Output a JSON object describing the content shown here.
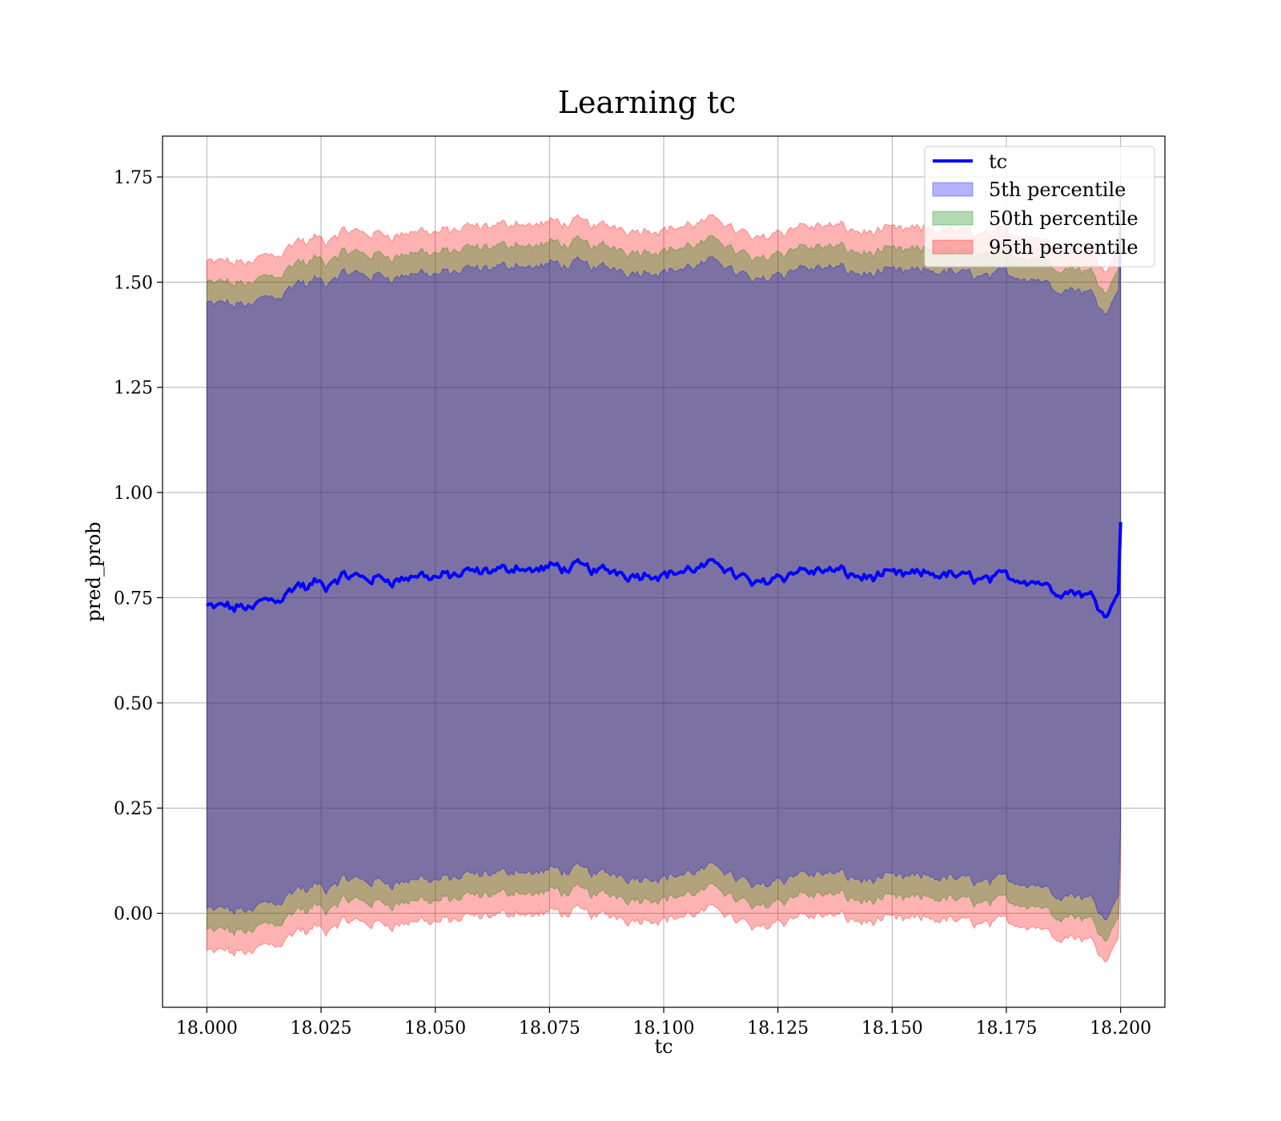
{
  "chart_data": {
    "type": "line",
    "title": "Learning tc",
    "xlabel": "tc",
    "ylabel": "pred_prob",
    "xlim": [
      17.9903,
      18.2097
    ],
    "ylim": [
      -0.2235,
      1.8471
    ],
    "x_ticks": [
      18.0,
      18.025,
      18.05,
      18.075,
      18.1,
      18.125,
      18.15,
      18.175,
      18.2
    ],
    "x_tick_labels": [
      "18.000",
      "18.025",
      "18.050",
      "18.075",
      "18.100",
      "18.125",
      "18.150",
      "18.175",
      "18.200"
    ],
    "y_ticks": [
      0.0,
      0.25,
      0.5,
      0.75,
      1.0,
      1.25,
      1.5,
      1.75
    ],
    "y_tick_labels": [
      "0.00",
      "0.25",
      "0.50",
      "0.75",
      "1.00",
      "1.25",
      "1.50",
      "1.75"
    ],
    "grid": true,
    "legend_position": "upper right",
    "x_start": 18.0,
    "x_end": 18.2,
    "point_count": 400,
    "mean_curve": {
      "x": [
        18.0,
        18.002,
        18.004,
        18.006,
        18.008,
        18.01,
        18.012,
        18.014,
        18.016,
        18.018,
        18.02,
        18.022,
        18.024,
        18.026,
        18.028,
        18.03,
        18.035,
        18.04,
        18.045,
        18.05,
        18.055,
        18.06,
        18.065,
        18.068,
        18.07,
        18.075,
        18.08,
        18.085,
        18.09,
        18.095,
        18.1,
        18.105,
        18.11,
        18.112,
        18.115,
        18.118,
        18.12,
        18.125,
        18.13,
        18.135,
        18.14,
        18.145,
        18.15,
        18.155,
        18.16,
        18.165,
        18.17,
        18.175,
        18.18,
        18.183,
        18.185,
        18.188,
        18.19,
        18.192,
        18.194,
        18.196,
        18.198,
        18.1995,
        18.2
      ],
      "y": [
        0.73,
        0.72,
        0.73,
        0.72,
        0.73,
        0.72,
        0.745,
        0.75,
        0.755,
        0.77,
        0.785,
        0.77,
        0.785,
        0.77,
        0.79,
        0.795,
        0.795,
        0.795,
        0.8,
        0.8,
        0.805,
        0.805,
        0.81,
        0.83,
        0.815,
        0.82,
        0.82,
        0.815,
        0.815,
        0.81,
        0.81,
        0.815,
        0.82,
        0.835,
        0.81,
        0.795,
        0.78,
        0.81,
        0.815,
        0.815,
        0.805,
        0.8,
        0.8,
        0.8,
        0.805,
        0.8,
        0.795,
        0.8,
        0.795,
        0.79,
        0.77,
        0.765,
        0.765,
        0.76,
        0.75,
        0.725,
        0.735,
        0.76,
        0.93
      ]
    },
    "series": [
      {
        "name": "tc",
        "kind": "line",
        "color": "#0000ff"
      },
      {
        "name": "5th percentile",
        "kind": "band",
        "color": "#0000ff",
        "opacity": 0.3,
        "spread": 0.72
      },
      {
        "name": "50th percentile",
        "kind": "band",
        "color": "#008000",
        "opacity": 0.3,
        "spread": 0.77
      },
      {
        "name": "95th percentile",
        "kind": "band",
        "color": "#ff0000",
        "opacity": 0.3,
        "spread": 0.82
      }
    ]
  }
}
